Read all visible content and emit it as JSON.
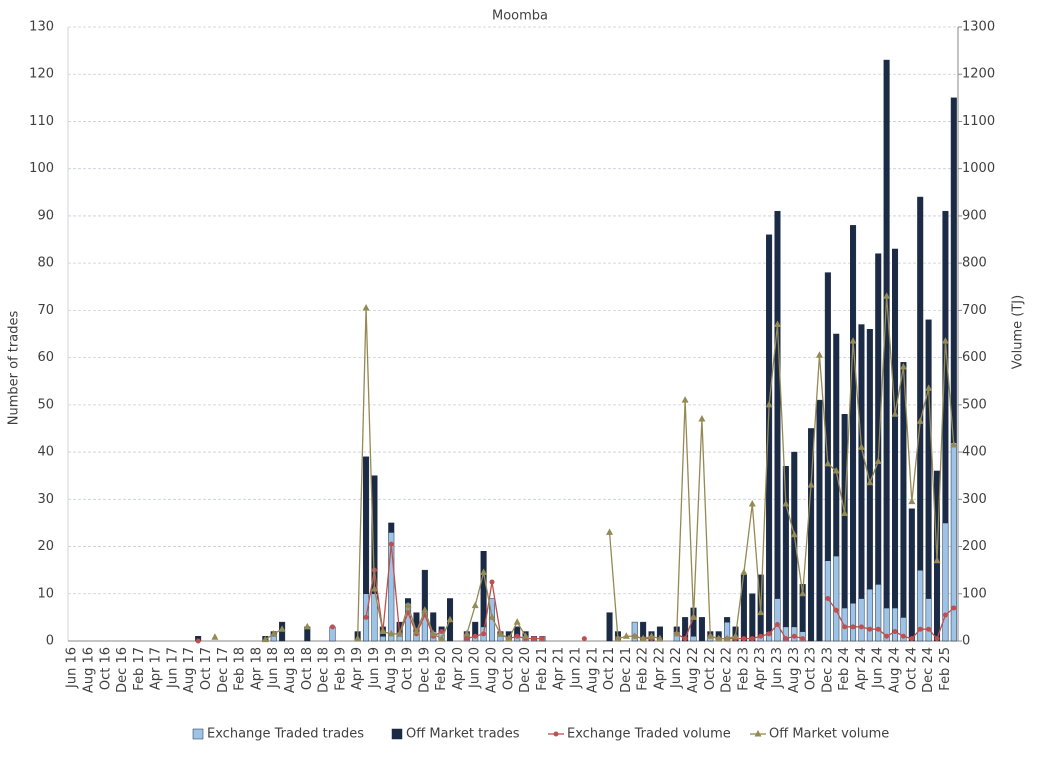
{
  "chart_data": {
    "type": "bar",
    "title": "Moomba",
    "ylabel": "Number of trades",
    "y2label": "Volume (TJ)",
    "ylim": [
      0,
      130
    ],
    "yticks": [
      0,
      10,
      20,
      30,
      40,
      50,
      60,
      70,
      80,
      90,
      100,
      110,
      120,
      130
    ],
    "y2lim": [
      0,
      1300
    ],
    "y2ticks": [
      0,
      100,
      200,
      300,
      400,
      500,
      600,
      700,
      800,
      900,
      1000,
      1100,
      1200,
      1300
    ],
    "grid": true,
    "legend": "bottom",
    "stacked": true,
    "categories": [
      "Jun 16",
      null,
      "Aug 16",
      null,
      "Oct 16",
      null,
      "Dec 16",
      null,
      "Feb 17",
      null,
      "Apr 17",
      null,
      "Jun 17",
      null,
      "Aug 17",
      null,
      "Oct 17",
      null,
      "Dec 17",
      null,
      "Feb 18",
      null,
      "Apr 18",
      null,
      "Jun 18",
      null,
      "Aug 18",
      null,
      "Oct 18",
      null,
      "Dec 18",
      null,
      "Feb 19",
      null,
      "Apr 19",
      null,
      "Jun 19",
      null,
      "Aug 19",
      null,
      "Oct 19",
      null,
      "Dec 19",
      null,
      "Feb 20",
      null,
      "Apr 20",
      null,
      "Jun 20",
      null,
      "Aug 20",
      null,
      "Oct 20",
      null,
      "Dec 20",
      null,
      "Feb 21",
      null,
      "Apr 21",
      null,
      "Jun 21",
      null,
      "Aug 21",
      null,
      "Oct 21",
      null,
      "Dec 21",
      null,
      "Feb 22",
      null,
      "Apr 22",
      null,
      "Jun 22",
      null,
      "Aug 22",
      null,
      "Oct 22",
      null,
      "Dec 22",
      null,
      "Feb 23",
      null,
      "Apr 23",
      null,
      "Jun 23",
      null,
      "Aug 23",
      null,
      "Oct 23",
      null,
      "Dec 23",
      null,
      "Feb 24",
      null,
      "Apr 24",
      null,
      "Jun 24",
      null,
      "Aug 24",
      null,
      "Oct 24",
      null,
      "Dec 24",
      null,
      "Feb 25",
      null
    ],
    "series": [
      {
        "name": "Exchange Traded trades",
        "type": "bar",
        "color": "#9dc3e6",
        "values": [
          null,
          null,
          null,
          null,
          null,
          null,
          null,
          null,
          null,
          null,
          null,
          null,
          null,
          null,
          null,
          null,
          null,
          null,
          null,
          null,
          null,
          null,
          null,
          null,
          1,
          null,
          null,
          null,
          null,
          null,
          null,
          3,
          null,
          null,
          null,
          10,
          10,
          1,
          23,
          1,
          8,
          2,
          6,
          2,
          2,
          null,
          null,
          1,
          1,
          3,
          9,
          1,
          1,
          1,
          1,
          1,
          1,
          null,
          null,
          null,
          null,
          null,
          null,
          null,
          null,
          1,
          null,
          4,
          null,
          null,
          null,
          null,
          2,
          null,
          1,
          null,
          1,
          null,
          4,
          null,
          null,
          null,
          1,
          2,
          9,
          3,
          3,
          2,
          null,
          null,
          17,
          18,
          7,
          8,
          9,
          11,
          12,
          7,
          7,
          5,
          null,
          15,
          9,
          null,
          25,
          42
        ]
      },
      {
        "name": "Off Market trades",
        "type": "bar",
        "color": "#1c2b45",
        "values": [
          null,
          null,
          null,
          null,
          null,
          null,
          null,
          null,
          null,
          null,
          null,
          null,
          null,
          null,
          null,
          1,
          null,
          null,
          null,
          null,
          null,
          null,
          null,
          1,
          1,
          4,
          null,
          null,
          3,
          null,
          null,
          null,
          null,
          null,
          2,
          29,
          25,
          2,
          2,
          3,
          1,
          4,
          9,
          4,
          1,
          9,
          null,
          1,
          3,
          16,
          null,
          1,
          1,
          2,
          1,
          null,
          null,
          null,
          null,
          null,
          null,
          null,
          null,
          null,
          6,
          1,
          null,
          null,
          4,
          2,
          3,
          null,
          1,
          5,
          6,
          5,
          1,
          2,
          1,
          3,
          14,
          10,
          13,
          84,
          82,
          34,
          37,
          10,
          45,
          51,
          61,
          47,
          41,
          80,
          58,
          55,
          70,
          116,
          76,
          54,
          28,
          79,
          59,
          36,
          66,
          73
        ]
      },
      {
        "name": "Exchange Traded volume",
        "type": "line",
        "marker": "circle",
        "axis": "y2",
        "color": "#c0504d",
        "values": [
          null,
          null,
          null,
          null,
          null,
          null,
          null,
          null,
          null,
          null,
          null,
          null,
          null,
          null,
          null,
          0,
          null,
          null,
          null,
          null,
          null,
          null,
          null,
          null,
          null,
          null,
          null,
          null,
          null,
          null,
          null,
          30,
          null,
          null,
          null,
          50,
          150,
          20,
          205,
          15,
          60,
          15,
          55,
          10,
          20,
          null,
          null,
          5,
          10,
          15,
          125,
          15,
          5,
          10,
          5,
          5,
          5,
          null,
          null,
          null,
          null,
          5,
          null,
          null,
          null,
          5,
          null,
          10,
          5,
          5,
          null,
          null,
          15,
          5,
          50,
          null,
          10,
          5,
          5,
          5,
          5,
          5,
          10,
          15,
          35,
          5,
          10,
          5,
          null,
          null,
          90,
          65,
          30,
          30,
          30,
          25,
          25,
          10,
          20,
          10,
          5,
          25,
          25,
          5,
          55,
          70
        ]
      },
      {
        "name": "Off Market volume",
        "type": "line",
        "marker": "triangle",
        "axis": "y2",
        "color": "#948a54",
        "values": [
          null,
          null,
          null,
          null,
          null,
          null,
          null,
          null,
          null,
          null,
          null,
          null,
          null,
          null,
          null,
          null,
          null,
          8,
          null,
          null,
          null,
          null,
          null,
          3,
          15,
          25,
          null,
          null,
          30,
          null,
          null,
          null,
          null,
          null,
          5,
          705,
          110,
          20,
          15,
          15,
          75,
          20,
          65,
          15,
          5,
          45,
          null,
          15,
          75,
          145,
          50,
          15,
          5,
          40,
          10,
          null,
          null,
          null,
          null,
          null,
          null,
          null,
          null,
          null,
          230,
          5,
          10,
          10,
          5,
          10,
          5,
          null,
          15,
          510,
          50,
          470,
          10,
          5,
          5,
          10,
          145,
          290,
          60,
          500,
          670,
          290,
          225,
          100,
          330,
          605,
          375,
          360,
          270,
          635,
          410,
          335,
          380,
          730,
          480,
          580,
          295,
          465,
          535,
          170,
          635,
          415
        ]
      }
    ]
  }
}
